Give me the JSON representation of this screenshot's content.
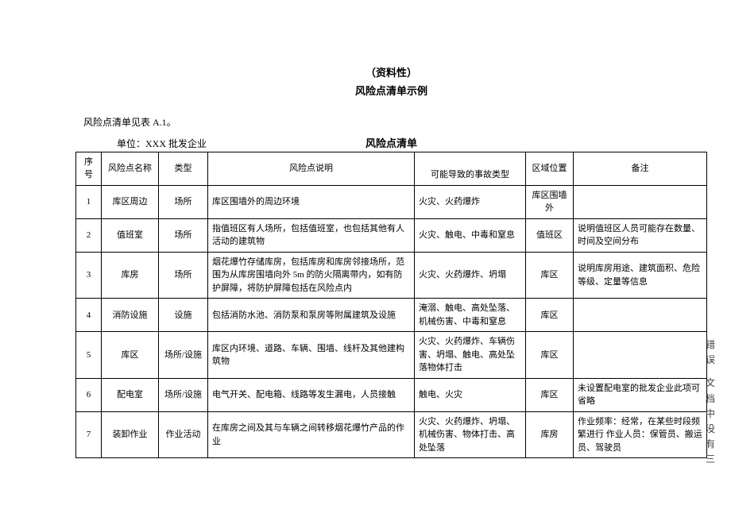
{
  "header": {
    "line1": "（资料性）",
    "line2": "风险点清单示例"
  },
  "intro": "风险点清单见表 A.1。",
  "unit_label": "单位：XXX 批发企业",
  "table_caption": "风险点清单",
  "columns": [
    "序号",
    "风险点名称",
    "类型",
    "风险点说明",
    "可能导致的事故类型",
    "区域位置",
    "备注"
  ],
  "rows": [
    {
      "seq": "1",
      "name": "库区周边",
      "type": "场所",
      "desc": "库区围墙外的周边环境",
      "acc": "火灾、火药爆炸",
      "loc": "库区围墙外",
      "note": ""
    },
    {
      "seq": "2",
      "name": "值班室",
      "type": "场所",
      "desc": "指值班区有人场所，包括值班室，也包括其他有人活动的建筑物",
      "acc": "火灾、触电、中毒和窒息",
      "loc": "值班区",
      "note": "说明值班区人员可能存在数量、时间及空间分布"
    },
    {
      "seq": "3",
      "name": "库房",
      "type": "场所",
      "desc": "烟花爆竹存储库房，包括库房和库房邻接场所，范围为从库房围墙向外 5m 的防火隔离带内，如有防护屏障，将防护屏障包括在风险点内",
      "acc": "火灾、火药爆炸、坍塌",
      "loc": "库区",
      "note": "说明库房用途、建筑面积、危险等级、定量等信息"
    },
    {
      "seq": "4",
      "name": "消防设施",
      "type": "设施",
      "desc": "包括消防水池、消防泵和泵房等附属建筑及设施",
      "acc": "淹溺、触电、高处坠落、机械伤害、中毒和窒息",
      "loc": "库区",
      "note": ""
    },
    {
      "seq": "5",
      "name": "库区",
      "type": "场所/设施",
      "desc": "库区内环境、道路、车辆、围墙、线杆及其他建构筑物",
      "acc": "火灾、火药爆炸、车辆伤害、坍塌、触电、高处坠落物体打击",
      "loc": "库区",
      "note": ""
    },
    {
      "seq": "6",
      "name": "配电室",
      "type": "场所/设施",
      "desc": "电气开关、配电箱、线路等发生漏电，人员接触",
      "acc": "触电、火灾",
      "loc": "库区",
      "note": "未设置配电室的批发企业此项可省略"
    },
    {
      "seq": "7",
      "name": "装卸作业",
      "type": "作业活动",
      "desc": "在库房之间及其与车辆之间转移烟花爆竹产品的作业",
      "acc": "火灾、火药爆炸、坍塌、机械伤害、物体打击、高处坠落",
      "loc": "库房",
      "note": "作业频率：经常，在某些时段频繁进行 作业人员：保管员、搬运员、驾驶员"
    }
  ],
  "side": {
    "block1": "错误",
    "block2": "文档中没有三"
  }
}
